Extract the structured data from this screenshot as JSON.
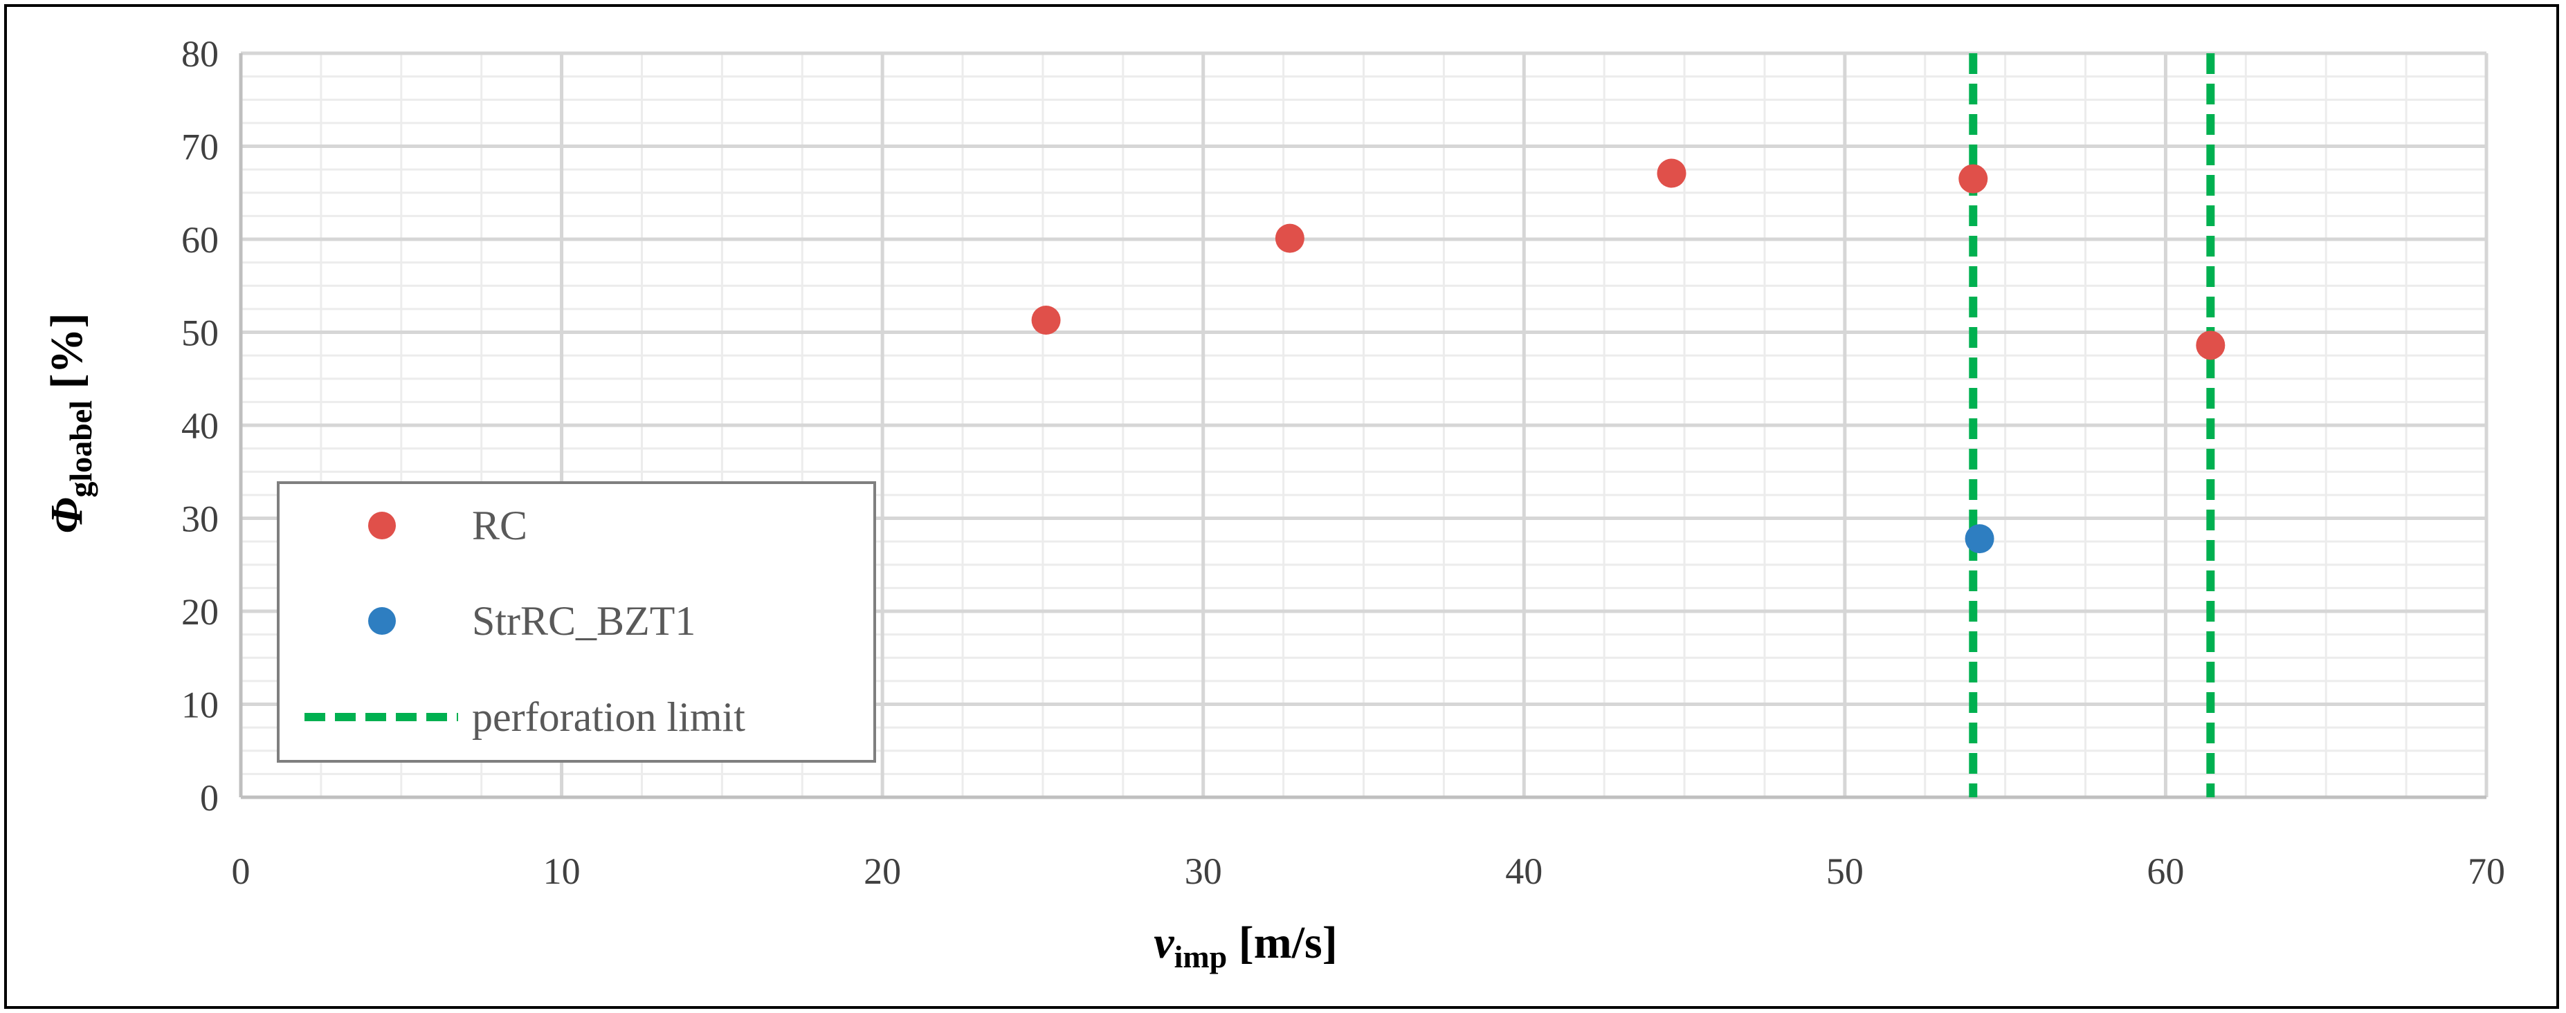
{
  "chart_data": {
    "type": "scatter",
    "xlim": [
      0,
      70
    ],
    "ylim": [
      0,
      80
    ],
    "x_major_step": 10,
    "y_major_step": 10,
    "x_minor_step": 2.5,
    "y_minor_step": 2.5,
    "grid": true,
    "x_ticks": [
      "0",
      "10",
      "20",
      "30",
      "40",
      "50",
      "60",
      "70"
    ],
    "y_ticks": [
      "0",
      "10",
      "20",
      "30",
      "40",
      "50",
      "60",
      "70",
      "80"
    ],
    "xlabel": {
      "main": "v",
      "sub": "imp",
      "unit": " [m/s]"
    },
    "ylabel": {
      "main": "Φ",
      "sub": "gloabel",
      "unit": " [%]"
    },
    "legend_position": "lower-left",
    "series": [
      {
        "name": "RC",
        "color": "#E0504A",
        "marker": "circle",
        "points": [
          {
            "x": 25.1,
            "y": 51.3
          },
          {
            "x": 32.7,
            "y": 60.1
          },
          {
            "x": 44.6,
            "y": 67.1
          },
          {
            "x": 54.0,
            "y": 66.5
          },
          {
            "x": 61.4,
            "y": 48.6
          }
        ]
      },
      {
        "name": "StrRC_BZT1",
        "color": "#2E7EC1",
        "marker": "circle",
        "points": [
          {
            "x": 54.2,
            "y": 27.8
          }
        ]
      },
      {
        "name": "perforation limit",
        "color": "#00B050",
        "style": "dashed",
        "vertical_lines_x": [
          54.0,
          61.4
        ]
      }
    ]
  }
}
